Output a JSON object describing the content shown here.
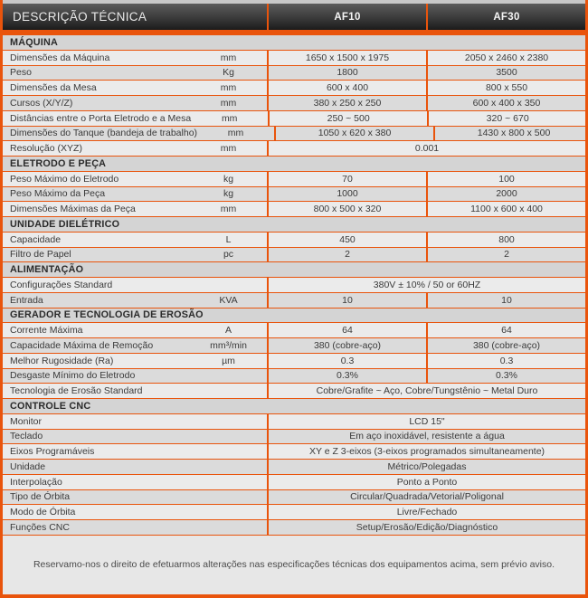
{
  "header": {
    "title": "DESCRIÇÃO TÉCNICA",
    "col1": "AF10",
    "col2": "AF30"
  },
  "sections": [
    {
      "title": "MÁQUINA",
      "rows": [
        {
          "label": "Dimensões da Máquina",
          "unit": "mm",
          "af10": "1650 x 1500 x 1975",
          "af30": "2050 x 2460 x 2380"
        },
        {
          "label": "Peso",
          "unit": "Kg",
          "af10": "1800",
          "af30": "3500"
        },
        {
          "label": "Dimensões da Mesa",
          "unit": "mm",
          "af10": "600 x 400",
          "af30": "800 x 550"
        },
        {
          "label": "Cursos (X/Y/Z)",
          "unit": "mm",
          "af10": "380 x 250 x 250",
          "af30": "600 x 400 x 350"
        },
        {
          "label": "Distâncias entre o Porta Eletrodo e a Mesa",
          "unit": "mm",
          "af10": "250 ~ 500",
          "af30": "320 ~ 670"
        },
        {
          "label": "Dimensões do Tanque (bandeja de trabalho)",
          "unit": "mm",
          "af10": "1050 x 620 x 380",
          "af30": "1430 x 800 x 500"
        },
        {
          "label": "Resolução (XYZ)",
          "unit": "mm",
          "span": "0.001"
        }
      ]
    },
    {
      "title": "ELETRODO E PEÇA",
      "rows": [
        {
          "label": "Peso Máximo do Eletrodo",
          "unit": "kg",
          "af10": "70",
          "af30": "100"
        },
        {
          "label": "Peso Máximo da Peça",
          "unit": "kg",
          "af10": "1000",
          "af30": "2000"
        },
        {
          "label": "Dimensões Máximas da Peça",
          "unit": "mm",
          "af10": "800 x 500 x 320",
          "af30": "1100 x 600 x 400"
        }
      ]
    },
    {
      "title": "UNIDADE DIELÉTRICO",
      "rows": [
        {
          "label": "Capacidade",
          "unit": "L",
          "af10": "450",
          "af30": "800"
        },
        {
          "label": "Filtro de Papel",
          "unit": "pc",
          "af10": "2",
          "af30": "2"
        }
      ]
    },
    {
      "title": "ALIMENTAÇÃO",
      "rows": [
        {
          "label": "Configurações Standard",
          "unit": "",
          "span": "380V ± 10% / 50 or 60HZ"
        },
        {
          "label": "Entrada",
          "unit": "KVA",
          "af10": "10",
          "af30": "10"
        }
      ]
    },
    {
      "title": "GERADOR E TECNOLOGIA DE EROSÃO",
      "rows": [
        {
          "label": "Corrente Máxima",
          "unit": "A",
          "af10": "64",
          "af30": "64"
        },
        {
          "label": "Capacidade Máxima de Remoção",
          "unit": "mm³/min",
          "af10": "380 (cobre-aço)",
          "af30": "380 (cobre-aço)"
        },
        {
          "label": "Melhor Rugosidade (Ra)",
          "unit": "µm",
          "af10": "0.3",
          "af30": "0.3"
        },
        {
          "label": "Desgaste Mínimo do Eletrodo",
          "unit": "",
          "af10": "0.3%",
          "af30": "0.3%"
        },
        {
          "label": "Tecnologia de Erosão Standard",
          "unit": "",
          "span": "Cobre/Grafite ~ Aço, Cobre/Tungstênio ~ Metal Duro"
        }
      ]
    },
    {
      "title": "CONTROLE CNC",
      "rows": [
        {
          "label": "Monitor",
          "unit": "",
          "span": "LCD 15\""
        },
        {
          "label": "Teclado",
          "unit": "",
          "span": "Em aço inoxidável, resistente a água"
        },
        {
          "label": "Eixos Programáveis",
          "unit": "",
          "span": "XY e Z 3-eixos (3-eixos programados simultaneamente)"
        },
        {
          "label": "Unidade",
          "unit": "",
          "span": "Métrico/Polegadas"
        },
        {
          "label": "Interpolação",
          "unit": "",
          "span": "Ponto a Ponto"
        },
        {
          "label": "Tipo de Órbita",
          "unit": "",
          "span": "Circular/Quadrada/Vetorial/Poligonal"
        },
        {
          "label": "Modo de Órbita",
          "unit": "",
          "span": "Livre/Fechado"
        },
        {
          "label": "Funções CNC",
          "unit": "",
          "span": "Setup/Erosão/Edição/Diagnóstico"
        }
      ]
    }
  ],
  "footer": {
    "note": "Reservamo-nos o direito de efetuarmos alterações nas especificações técnicas dos equipamentos acima, sem prévio aviso."
  },
  "colors": {
    "accent": "#e9540c",
    "row-light": "#ebebeb",
    "row-dark": "#dbdbdb",
    "section-bg": "#d4d4d4",
    "footer-bg": "#e7e7e7",
    "text-dark": "#3a3a3a"
  }
}
